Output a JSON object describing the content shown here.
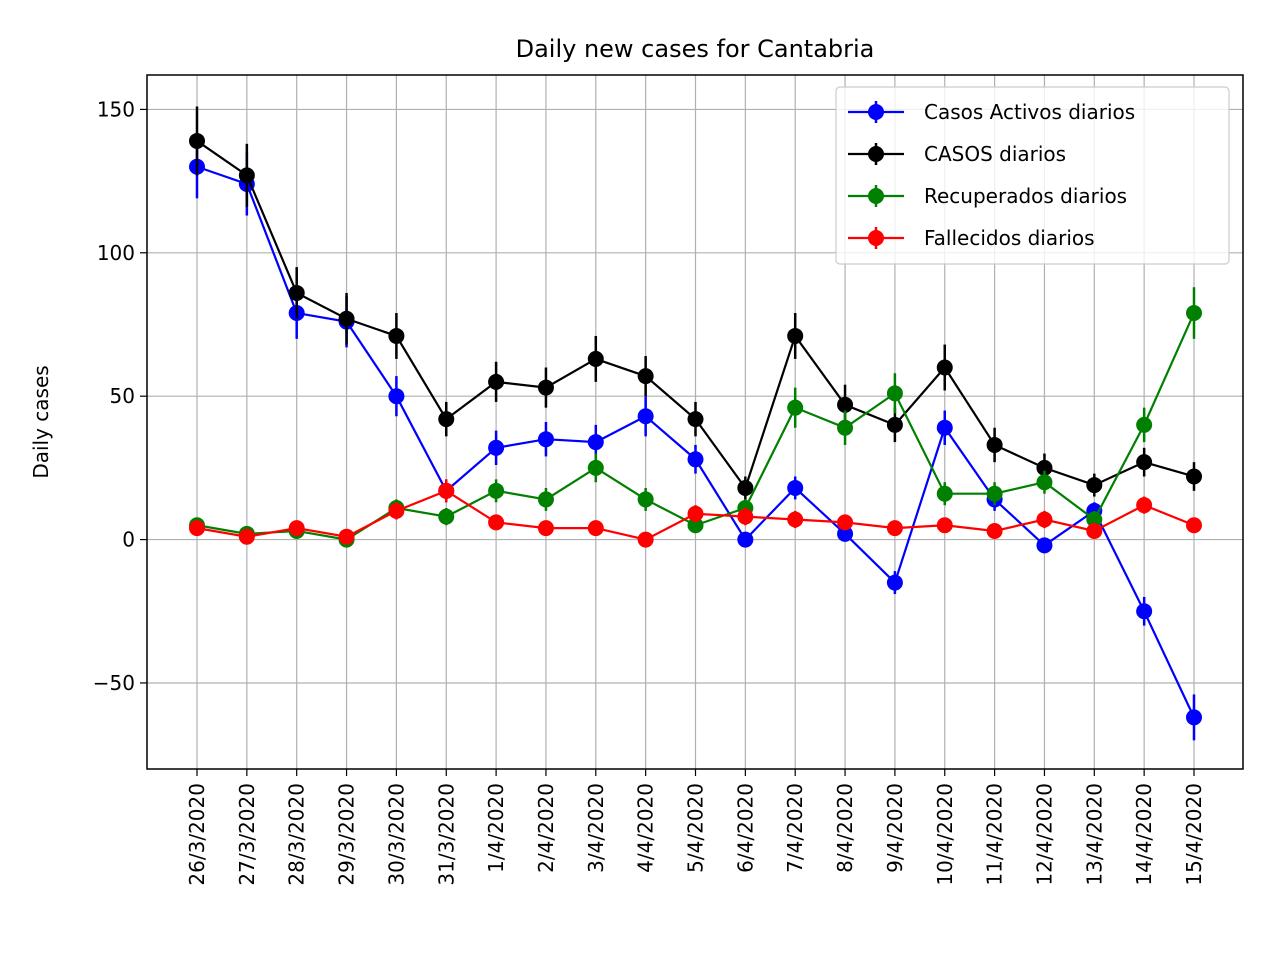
{
  "chart_data": {
    "type": "line",
    "title": "Daily new cases for Cantabria",
    "xlabel": "",
    "ylabel": "Daily cases",
    "ylim": [
      -80,
      162
    ],
    "yticks": [
      -50,
      0,
      50,
      100,
      150
    ],
    "ytick_labels": [
      "−50",
      "0",
      "50",
      "100",
      "150"
    ],
    "grid": true,
    "legend_position": "top-right",
    "categories": [
      "26/3/2020",
      "27/3/2020",
      "28/3/2020",
      "29/3/2020",
      "30/3/2020",
      "31/3/2020",
      "1/4/2020",
      "2/4/2020",
      "3/4/2020",
      "4/4/2020",
      "5/4/2020",
      "6/4/2020",
      "7/4/2020",
      "8/4/2020",
      "9/4/2020",
      "10/4/2020",
      "11/4/2020",
      "12/4/2020",
      "13/4/2020",
      "14/4/2020",
      "15/4/2020"
    ],
    "series": [
      {
        "name": "Casos Activos diarios",
        "color": "#0000ff",
        "values": [
          130,
          124,
          79,
          76,
          50,
          17,
          32,
          35,
          34,
          43,
          28,
          0,
          18,
          2,
          -15,
          39,
          14,
          -2,
          10,
          -25,
          -62
        ],
        "errors": [
          11,
          11,
          9,
          9,
          7,
          4,
          6,
          6,
          6,
          7,
          5,
          0,
          4,
          1,
          4,
          6,
          4,
          1,
          3,
          5,
          8
        ]
      },
      {
        "name": "CASOS diarios",
        "color": "#000000",
        "values": [
          139,
          127,
          86,
          77,
          71,
          42,
          55,
          53,
          63,
          57,
          42,
          18,
          71,
          47,
          40,
          60,
          33,
          25,
          19,
          27,
          22
        ],
        "errors": [
          12,
          11,
          9,
          9,
          8,
          6,
          7,
          7,
          8,
          7,
          6,
          4,
          8,
          7,
          6,
          8,
          6,
          5,
          4,
          5,
          5
        ]
      },
      {
        "name": "Recuperados diarios",
        "color": "#008000",
        "values": [
          5,
          2,
          3,
          0,
          11,
          8,
          17,
          14,
          25,
          14,
          5,
          11,
          46,
          39,
          51,
          16,
          16,
          20,
          7,
          40,
          79
        ],
        "errors": [
          2,
          1,
          2,
          0,
          3,
          3,
          4,
          4,
          5,
          4,
          2,
          3,
          7,
          6,
          7,
          4,
          4,
          4,
          3,
          6,
          9
        ]
      },
      {
        "name": "Fallecidos diarios",
        "color": "#ff0000",
        "values": [
          4,
          1,
          4,
          1,
          10,
          17,
          6,
          4,
          4,
          0,
          9,
          8,
          7,
          6,
          4,
          5,
          3,
          7,
          3,
          12,
          5
        ],
        "errors": [
          2,
          1,
          2,
          1,
          3,
          4,
          2,
          2,
          2,
          0,
          3,
          3,
          3,
          2,
          2,
          2,
          2,
          3,
          2,
          3,
          2
        ]
      }
    ]
  }
}
